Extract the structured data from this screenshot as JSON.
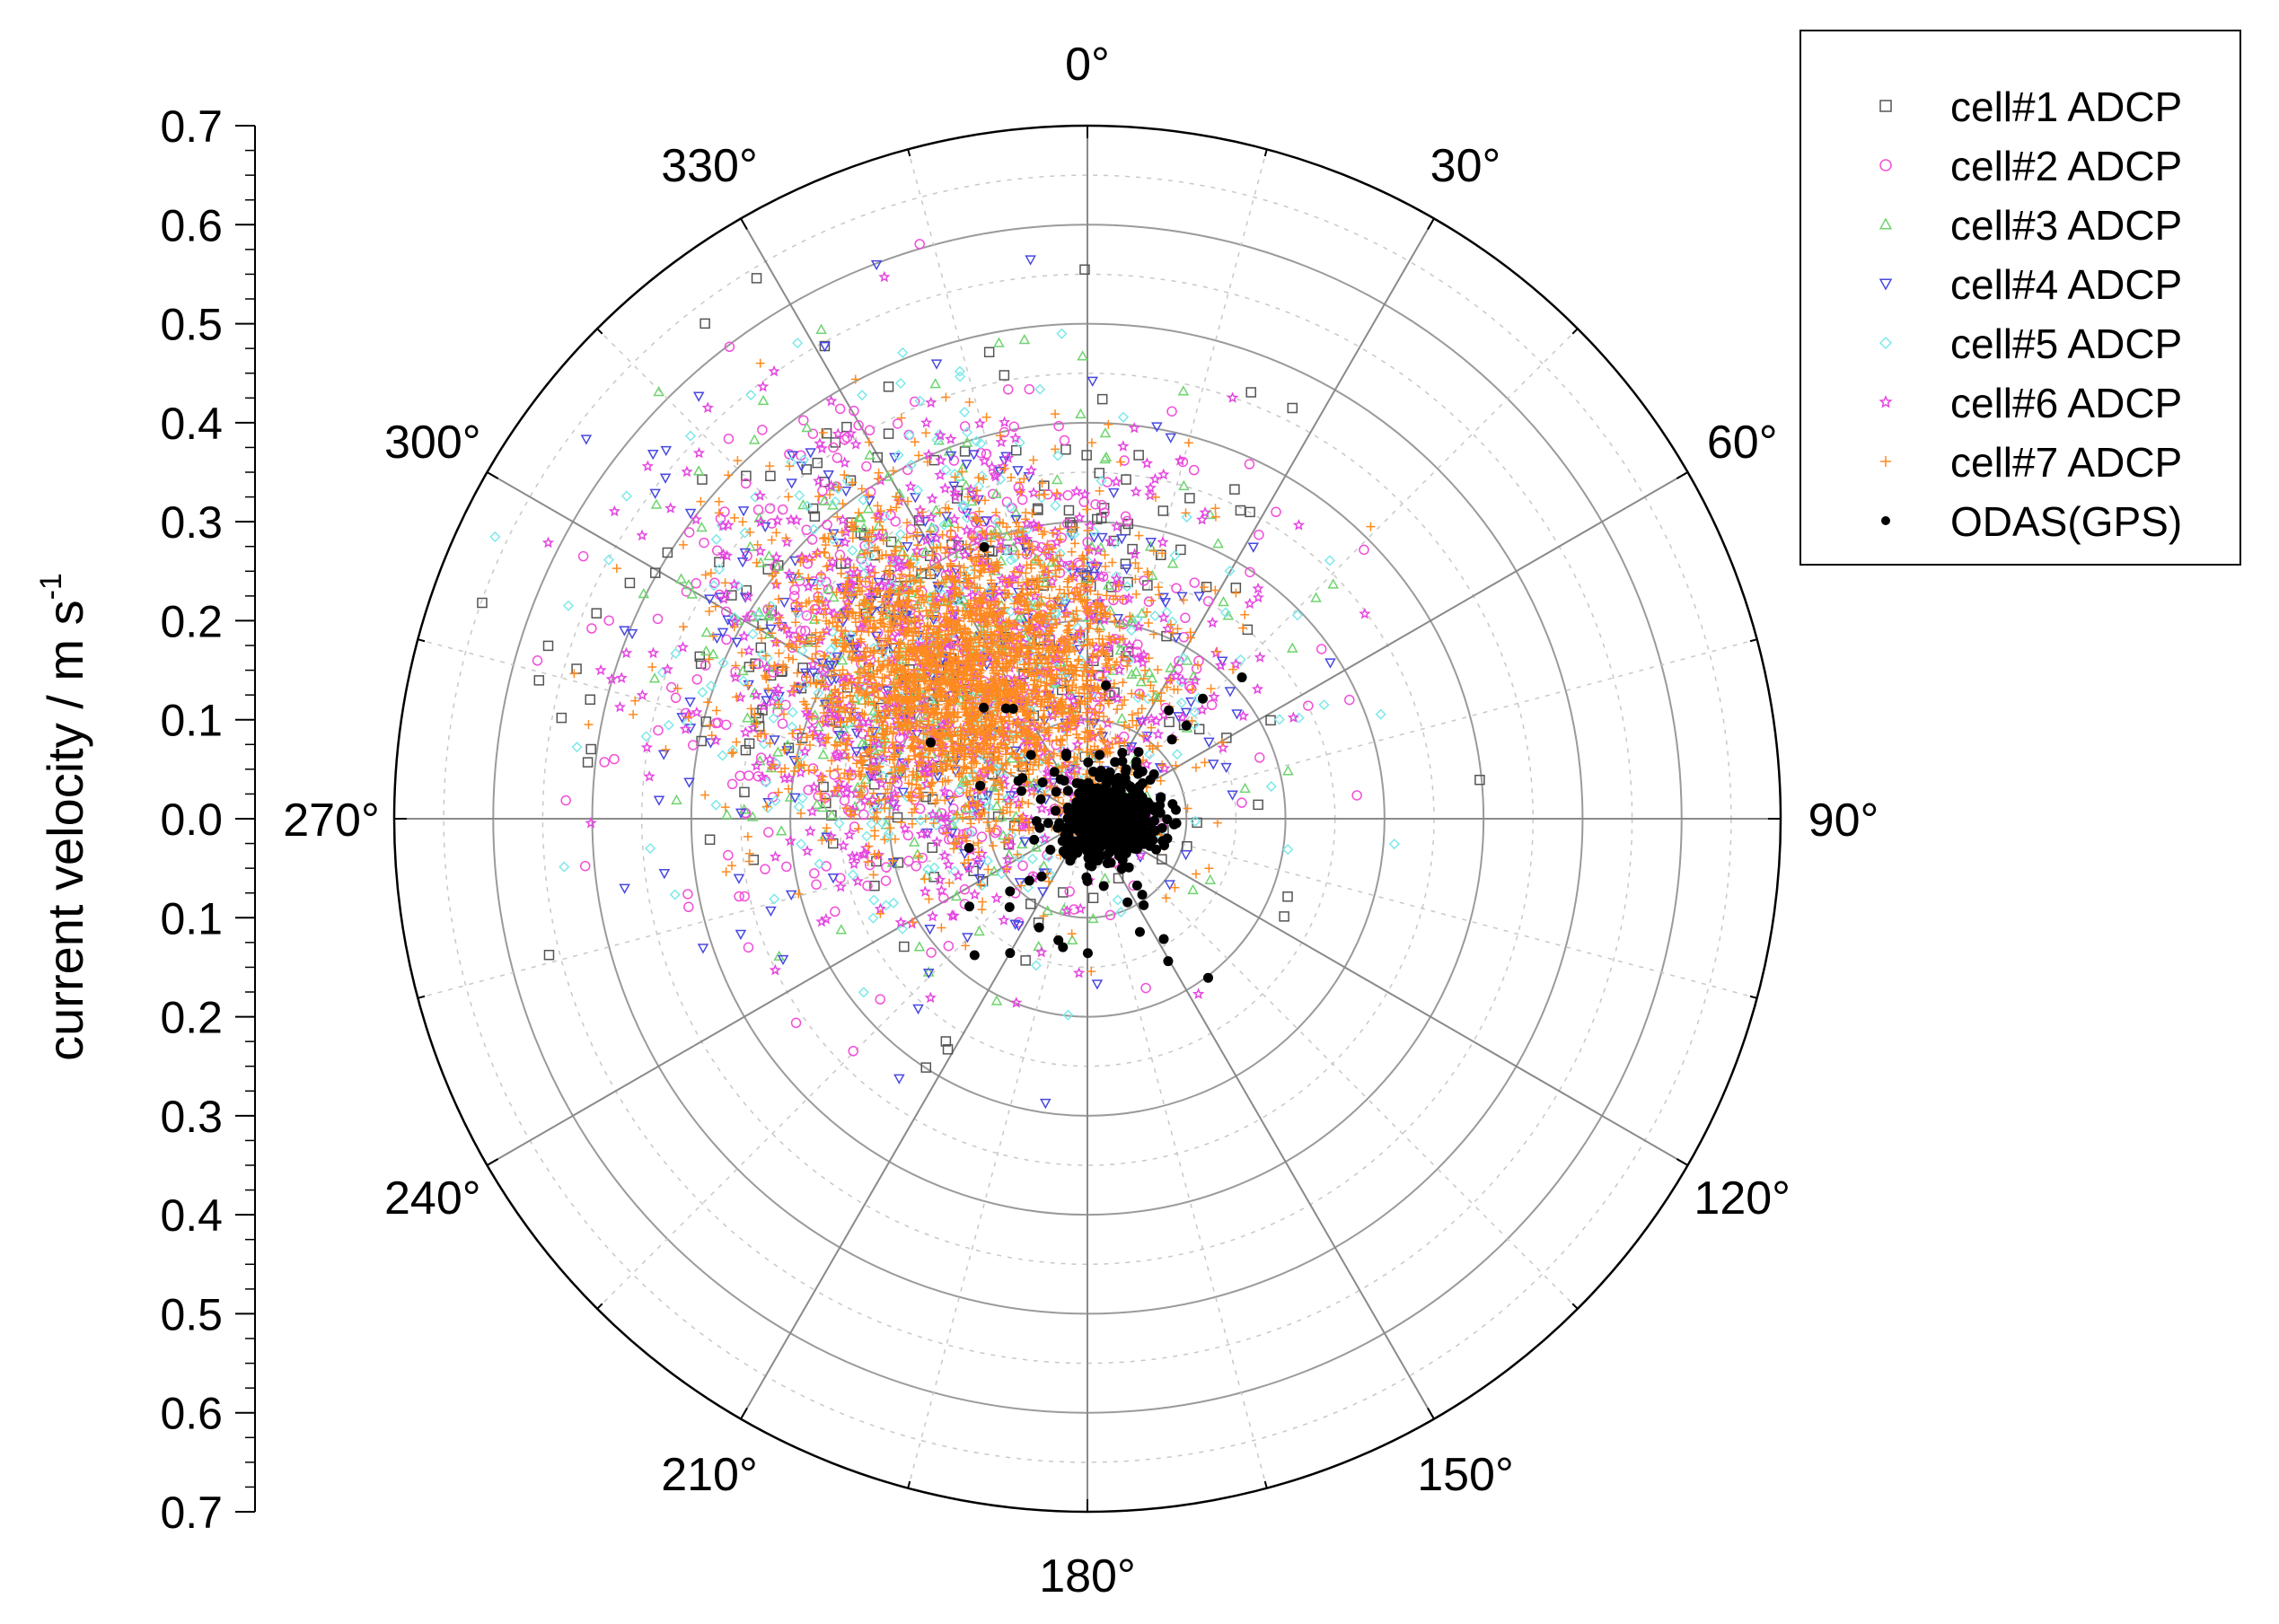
{
  "chart_data": {
    "type": "scatter",
    "subtype": "polar",
    "title": "",
    "ylabel": "current velocity / m s",
    "ylabel_superscript": "-1",
    "radial_range": [
      0,
      0.7
    ],
    "radial_ticks": [
      "0.0",
      "0.1",
      "0.2",
      "0.3",
      "0.4",
      "0.5",
      "0.6",
      "0.7"
    ],
    "angular_ticks": [
      "0°",
      "30°",
      "60°",
      "90°",
      "120°",
      "150°",
      "180°",
      "210°",
      "240°",
      "270°",
      "300°",
      "330°"
    ],
    "angular_zero": "top",
    "angular_direction": "clockwise",
    "grid": true,
    "legend_position": "top-right",
    "series": [
      {
        "name": "cell#1 ADCP",
        "marker": "square",
        "color": "#555555"
      },
      {
        "name": "cell#2 ADCP",
        "marker": "circle",
        "color": "#f24fd8"
      },
      {
        "name": "cell#3 ADCP",
        "marker": "triangle-up",
        "color": "#6fd46f"
      },
      {
        "name": "cell#4 ADCP",
        "marker": "triangle-down",
        "color": "#4848e0"
      },
      {
        "name": "cell#5 ADCP",
        "marker": "diamond",
        "color": "#7ee8ea"
      },
      {
        "name": "cell#6 ADCP",
        "marker": "star",
        "color": "#e645e0"
      },
      {
        "name": "cell#7 ADCP",
        "marker": "plus",
        "color": "#ff8a1f"
      },
      {
        "name": "ODAS(GPS)",
        "marker": "dot",
        "color": "#000000"
      }
    ],
    "clusters": {
      "adcp_center": {
        "direction_deg": 318,
        "speed": 0.21
      },
      "gps_center": {
        "direction_deg": 90,
        "speed": 0.02
      }
    }
  }
}
